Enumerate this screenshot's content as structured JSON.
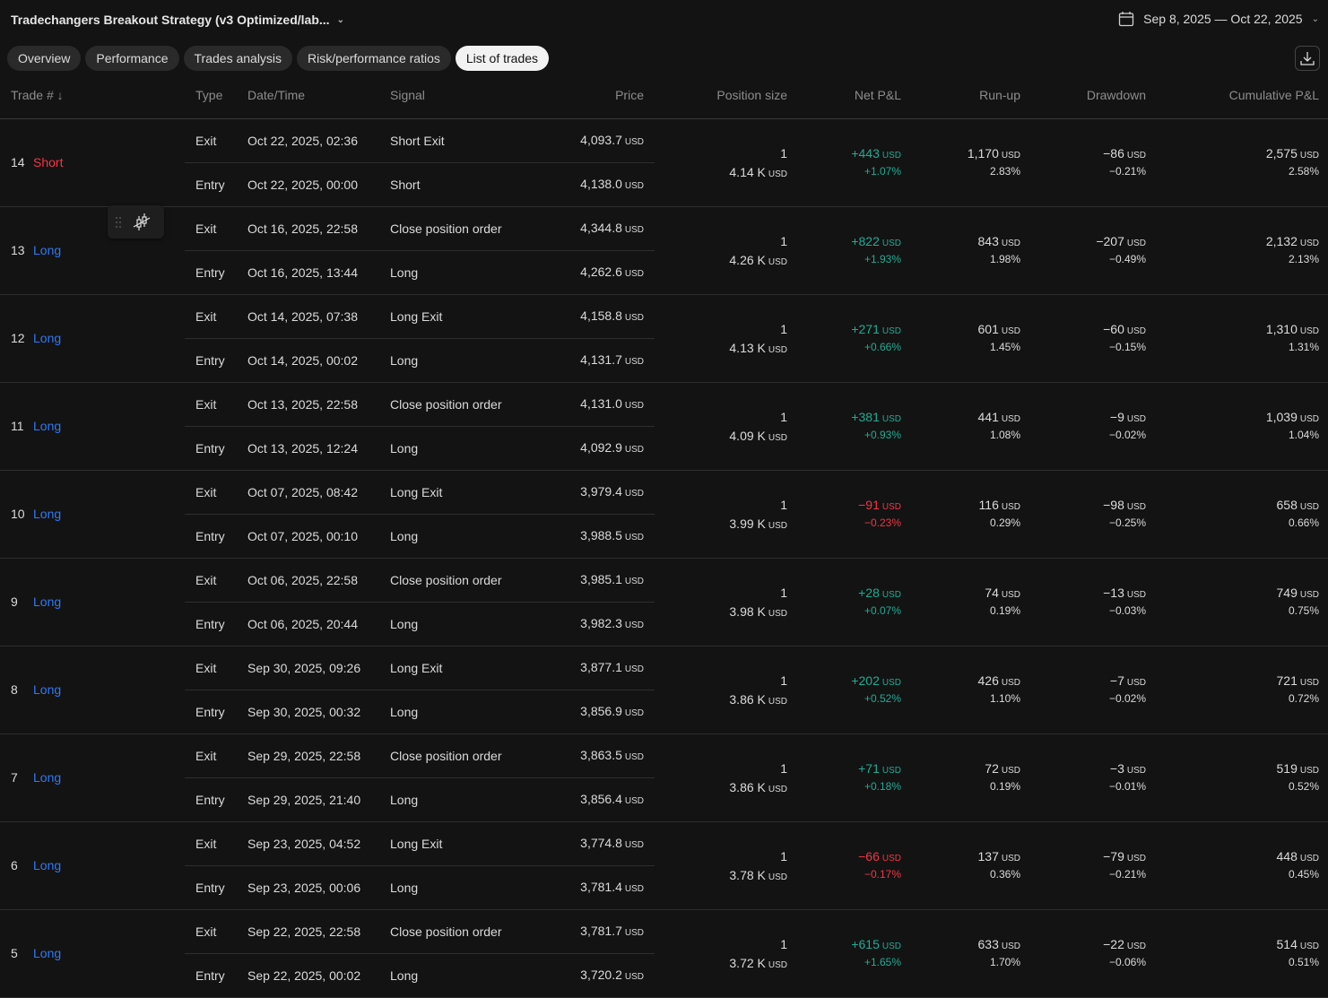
{
  "header": {
    "title": "Tradechangers Breakout Strategy (v3 Optimized/lab...",
    "date_range": "Sep 8, 2025 — Oct 22, 2025"
  },
  "tabs": [
    {
      "label": "Overview"
    },
    {
      "label": "Performance"
    },
    {
      "label": "Trades analysis"
    },
    {
      "label": "Risk/performance ratios"
    },
    {
      "label": "List of trades",
      "active": true
    }
  ],
  "columns": {
    "trade": "Trade #",
    "type": "Type",
    "datetime": "Date/Time",
    "signal": "Signal",
    "price": "Price",
    "position_size": "Position size",
    "net_pnl": "Net P&L",
    "runup": "Run-up",
    "drawdown": "Drawdown",
    "cumulative": "Cumulative P&L"
  },
  "currency": "USD",
  "colors": {
    "green": "#22ab94",
    "red": "#f23645",
    "blue": "#3179f5"
  },
  "trades": [
    {
      "num": "14",
      "side": "Short",
      "exit": {
        "type": "Exit",
        "date": "Oct 22, 2025, 02:36",
        "signal": "Short Exit",
        "price": "4,093.7"
      },
      "entry": {
        "type": "Entry",
        "date": "Oct 22, 2025, 00:00",
        "signal": "Short",
        "price": "4,138.0"
      },
      "qty": "1",
      "value": "4.14 K",
      "pnl": "+443",
      "pnl_pct": "+1.07%",
      "runup": "1,170",
      "runup_pct": "2.83%",
      "dd": "−86",
      "dd_pct": "−0.21%",
      "cum": "2,575",
      "cum_pct": "2.58%"
    },
    {
      "num": "13",
      "side": "Long",
      "exit": {
        "type": "Exit",
        "date": "Oct 16, 2025, 22:58",
        "signal": "Close position order",
        "price": "4,344.8"
      },
      "entry": {
        "type": "Entry",
        "date": "Oct 16, 2025, 13:44",
        "signal": "Long",
        "price": "4,262.6"
      },
      "qty": "1",
      "value": "4.26 K",
      "pnl": "+822",
      "pnl_pct": "+1.93%",
      "runup": "843",
      "runup_pct": "1.98%",
      "dd": "−207",
      "dd_pct": "−0.49%",
      "cum": "2,132",
      "cum_pct": "2.13%"
    },
    {
      "num": "12",
      "side": "Long",
      "exit": {
        "type": "Exit",
        "date": "Oct 14, 2025, 07:38",
        "signal": "Long Exit",
        "price": "4,158.8"
      },
      "entry": {
        "type": "Entry",
        "date": "Oct 14, 2025, 00:02",
        "signal": "Long",
        "price": "4,131.7"
      },
      "qty": "1",
      "value": "4.13 K",
      "pnl": "+271",
      "pnl_pct": "+0.66%",
      "runup": "601",
      "runup_pct": "1.45%",
      "dd": "−60",
      "dd_pct": "−0.15%",
      "cum": "1,310",
      "cum_pct": "1.31%"
    },
    {
      "num": "11",
      "side": "Long",
      "exit": {
        "type": "Exit",
        "date": "Oct 13, 2025, 22:58",
        "signal": "Close position order",
        "price": "4,131.0"
      },
      "entry": {
        "type": "Entry",
        "date": "Oct 13, 2025, 12:24",
        "signal": "Long",
        "price": "4,092.9"
      },
      "qty": "1",
      "value": "4.09 K",
      "pnl": "+381",
      "pnl_pct": "+0.93%",
      "runup": "441",
      "runup_pct": "1.08%",
      "dd": "−9",
      "dd_pct": "−0.02%",
      "cum": "1,039",
      "cum_pct": "1.04%"
    },
    {
      "num": "10",
      "side": "Long",
      "exit": {
        "type": "Exit",
        "date": "Oct 07, 2025, 08:42",
        "signal": "Long Exit",
        "price": "3,979.4"
      },
      "entry": {
        "type": "Entry",
        "date": "Oct 07, 2025, 00:10",
        "signal": "Long",
        "price": "3,988.5"
      },
      "qty": "1",
      "value": "3.99 K",
      "pnl": "−91",
      "pnl_pct": "−0.23%",
      "runup": "116",
      "runup_pct": "0.29%",
      "dd": "−98",
      "dd_pct": "−0.25%",
      "cum": "658",
      "cum_pct": "0.66%"
    },
    {
      "num": "9",
      "side": "Long",
      "exit": {
        "type": "Exit",
        "date": "Oct 06, 2025, 22:58",
        "signal": "Close position order",
        "price": "3,985.1"
      },
      "entry": {
        "type": "Entry",
        "date": "Oct 06, 2025, 20:44",
        "signal": "Long",
        "price": "3,982.3"
      },
      "qty": "1",
      "value": "3.98 K",
      "pnl": "+28",
      "pnl_pct": "+0.07%",
      "runup": "74",
      "runup_pct": "0.19%",
      "dd": "−13",
      "dd_pct": "−0.03%",
      "cum": "749",
      "cum_pct": "0.75%"
    },
    {
      "num": "8",
      "side": "Long",
      "exit": {
        "type": "Exit",
        "date": "Sep 30, 2025, 09:26",
        "signal": "Long Exit",
        "price": "3,877.1"
      },
      "entry": {
        "type": "Entry",
        "date": "Sep 30, 2025, 00:32",
        "signal": "Long",
        "price": "3,856.9"
      },
      "qty": "1",
      "value": "3.86 K",
      "pnl": "+202",
      "pnl_pct": "+0.52%",
      "runup": "426",
      "runup_pct": "1.10%",
      "dd": "−7",
      "dd_pct": "−0.02%",
      "cum": "721",
      "cum_pct": "0.72%"
    },
    {
      "num": "7",
      "side": "Long",
      "exit": {
        "type": "Exit",
        "date": "Sep 29, 2025, 22:58",
        "signal": "Close position order",
        "price": "3,863.5"
      },
      "entry": {
        "type": "Entry",
        "date": "Sep 29, 2025, 21:40",
        "signal": "Long",
        "price": "3,856.4"
      },
      "qty": "1",
      "value": "3.86 K",
      "pnl": "+71",
      "pnl_pct": "+0.18%",
      "runup": "72",
      "runup_pct": "0.19%",
      "dd": "−3",
      "dd_pct": "−0.01%",
      "cum": "519",
      "cum_pct": "0.52%"
    },
    {
      "num": "6",
      "side": "Long",
      "exit": {
        "type": "Exit",
        "date": "Sep 23, 2025, 04:52",
        "signal": "Long Exit",
        "price": "3,774.8"
      },
      "entry": {
        "type": "Entry",
        "date": "Sep 23, 2025, 00:06",
        "signal": "Long",
        "price": "3,781.4"
      },
      "qty": "1",
      "value": "3.78 K",
      "pnl": "−66",
      "pnl_pct": "−0.17%",
      "runup": "137",
      "runup_pct": "0.36%",
      "dd": "−79",
      "dd_pct": "−0.21%",
      "cum": "448",
      "cum_pct": "0.45%"
    },
    {
      "num": "5",
      "side": "Long",
      "exit": {
        "type": "Exit",
        "date": "Sep 22, 2025, 22:58",
        "signal": "Close position order",
        "price": "3,781.7"
      },
      "entry": {
        "type": "Entry",
        "date": "Sep 22, 2025, 00:02",
        "signal": "Long",
        "price": "3,720.2"
      },
      "qty": "1",
      "value": "3.72 K",
      "pnl": "+615",
      "pnl_pct": "+1.65%",
      "runup": "633",
      "runup_pct": "1.70%",
      "dd": "−22",
      "dd_pct": "−0.06%",
      "cum": "514",
      "cum_pct": "0.51%"
    }
  ]
}
